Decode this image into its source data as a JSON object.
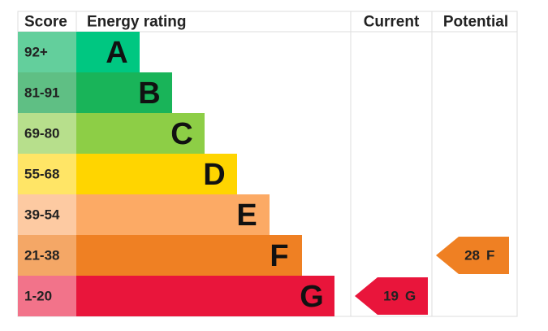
{
  "headers": {
    "score": "Score",
    "rating": "Energy rating",
    "current": "Current",
    "potential": "Potential"
  },
  "rows": [
    {
      "score": "92+",
      "letter": "A",
      "color": "#00c781",
      "score_color": "#63cf9c"
    },
    {
      "score": "81-91",
      "letter": "B",
      "color": "#19b459",
      "score_color": "#5fbf84"
    },
    {
      "score": "69-80",
      "letter": "C",
      "color": "#8dce46",
      "score_color": "#b7df8c"
    },
    {
      "score": "55-68",
      "letter": "D",
      "color": "#ffd500",
      "score_color": "#ffe566"
    },
    {
      "score": "39-54",
      "letter": "E",
      "color": "#fcaa65",
      "score_color": "#fdcaa2"
    },
    {
      "score": "21-38",
      "letter": "F",
      "color": "#ef8023",
      "score_color": "#f4a766"
    },
    {
      "score": "1-20",
      "letter": "G",
      "color": "#e9153b",
      "score_color": "#f2738a"
    }
  ],
  "current": {
    "score": "19",
    "rating": "G"
  },
  "potential": {
    "score": "28",
    "rating": "F"
  }
}
